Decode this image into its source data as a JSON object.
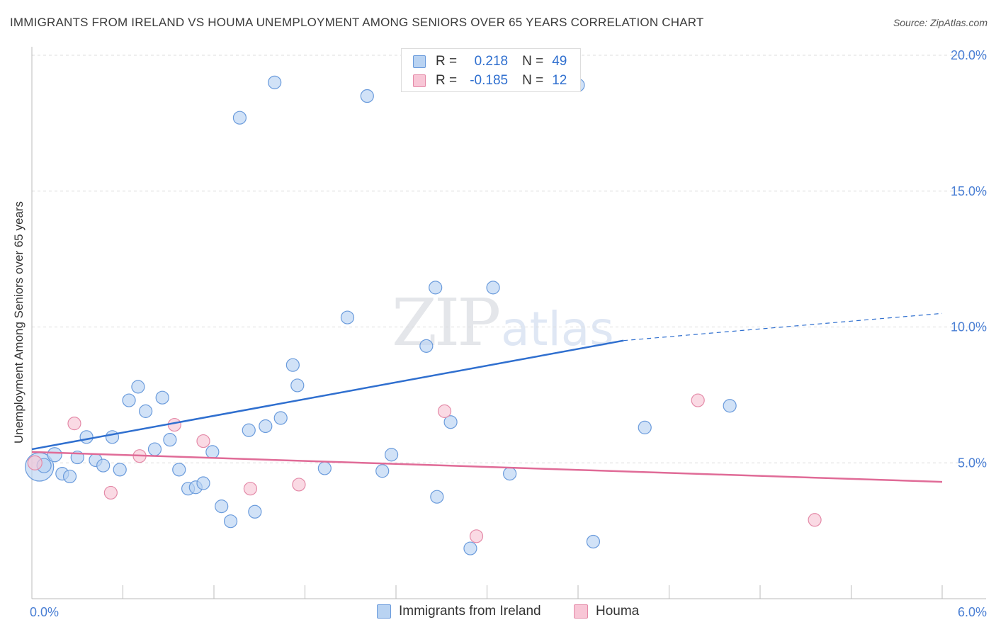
{
  "header": {
    "title": "IMMIGRANTS FROM IRELAND VS HOUMA UNEMPLOYMENT AMONG SENIORS OVER 65 YEARS CORRELATION CHART",
    "source": "Source: ZipAtlas.com"
  },
  "watermark": {
    "zip": "ZIP",
    "atlas": "atlas"
  },
  "legend": {
    "r_label": "R =",
    "n_label": "N =",
    "rows": [
      {
        "name": "Immigrants from Ireland",
        "r": "0.218",
        "n": "49"
      },
      {
        "name": "Houma",
        "r": "-0.185",
        "n": "12"
      }
    ]
  },
  "colors": {
    "blue_fill": "#b9d3f2",
    "blue_stroke": "#6a9bdc",
    "blue_line": "#2f6fcf",
    "pink_fill": "#f8c6d6",
    "pink_stroke": "#e48aa8",
    "pink_line": "#e06b97"
  },
  "chart_data": {
    "type": "scatter",
    "title": "IMMIGRANTS FROM IRELAND VS HOUMA UNEMPLOYMENT AMONG SENIORS OVER 65 YEARS CORRELATION CHART",
    "xlabel": "",
    "ylabel": "Unemployment Among Seniors over 65 years",
    "xlim": [
      0,
      6
    ],
    "ylim": [
      0,
      20
    ],
    "x_tick_labels": [
      "0.0%",
      "6.0%"
    ],
    "y_ticks": [
      5,
      10,
      15,
      20
    ],
    "y_tick_labels": [
      "5.0%",
      "10.0%",
      "15.0%",
      "20.0%"
    ],
    "grid": true,
    "legend_position": "top-center",
    "series": [
      {
        "name": "Immigrants from Ireland",
        "r": 0.218,
        "n": 49,
        "trend": {
          "x0": 0.0,
          "y0": 5.5,
          "x1": 3.9,
          "y1": 9.5,
          "dash_to_x": 6.0,
          "dash_to_y": 10.5
        },
        "points": [
          [
            0.05,
            4.85,
            20
          ],
          [
            0.08,
            4.9,
            10
          ],
          [
            0.15,
            5.3,
            10
          ],
          [
            0.2,
            4.6,
            9
          ],
          [
            0.25,
            4.5,
            9
          ],
          [
            0.3,
            5.2,
            9
          ],
          [
            0.36,
            5.95,
            9
          ],
          [
            0.42,
            5.1,
            9
          ],
          [
            0.47,
            4.9,
            9
          ],
          [
            0.53,
            5.95,
            9
          ],
          [
            0.58,
            4.75,
            9
          ],
          [
            0.64,
            7.3,
            9
          ],
          [
            0.7,
            7.8,
            9
          ],
          [
            0.75,
            6.9,
            9
          ],
          [
            0.81,
            5.5,
            9
          ],
          [
            0.86,
            7.4,
            9
          ],
          [
            0.91,
            5.85,
            9
          ],
          [
            0.97,
            4.75,
            9
          ],
          [
            1.03,
            4.05,
            9
          ],
          [
            1.08,
            4.1,
            9
          ],
          [
            1.13,
            4.25,
            9
          ],
          [
            1.19,
            5.4,
            9
          ],
          [
            1.25,
            3.4,
            9
          ],
          [
            1.31,
            2.85,
            9
          ],
          [
            1.37,
            17.7,
            9
          ],
          [
            1.43,
            6.2,
            9
          ],
          [
            1.47,
            3.2,
            9
          ],
          [
            1.54,
            6.35,
            9
          ],
          [
            1.6,
            19.0,
            9
          ],
          [
            1.64,
            6.65,
            9
          ],
          [
            1.72,
            8.6,
            9
          ],
          [
            1.75,
            7.85,
            9
          ],
          [
            1.93,
            4.8,
            9
          ],
          [
            2.08,
            10.35,
            9
          ],
          [
            2.21,
            18.5,
            9
          ],
          [
            2.31,
            4.7,
            9
          ],
          [
            2.37,
            5.3,
            9
          ],
          [
            2.6,
            9.3,
            9
          ],
          [
            2.66,
            11.45,
            9
          ],
          [
            2.67,
            3.75,
            9
          ],
          [
            2.76,
            6.5,
            9
          ],
          [
            2.89,
            1.85,
            9
          ],
          [
            3.04,
            11.45,
            9
          ],
          [
            3.15,
            4.6,
            9
          ],
          [
            3.6,
            18.9,
            9
          ],
          [
            3.7,
            2.1,
            9
          ],
          [
            4.04,
            6.3,
            9
          ],
          [
            4.6,
            7.1,
            9
          ]
        ]
      },
      {
        "name": "Houma",
        "r": -0.185,
        "n": 12,
        "trend": {
          "x0": 0.0,
          "y0": 5.4,
          "x1": 6.0,
          "y1": 4.3
        },
        "points": [
          [
            0.02,
            5.0,
            10
          ],
          [
            0.28,
            6.45,
            9
          ],
          [
            0.52,
            3.9,
            9
          ],
          [
            0.71,
            5.25,
            9
          ],
          [
            0.94,
            6.4,
            9
          ],
          [
            1.13,
            5.8,
            9
          ],
          [
            1.44,
            4.05,
            9
          ],
          [
            1.76,
            4.2,
            9
          ],
          [
            2.72,
            6.9,
            9
          ],
          [
            2.93,
            2.3,
            9
          ],
          [
            4.39,
            7.3,
            9
          ],
          [
            5.16,
            2.9,
            9
          ]
        ]
      }
    ]
  }
}
